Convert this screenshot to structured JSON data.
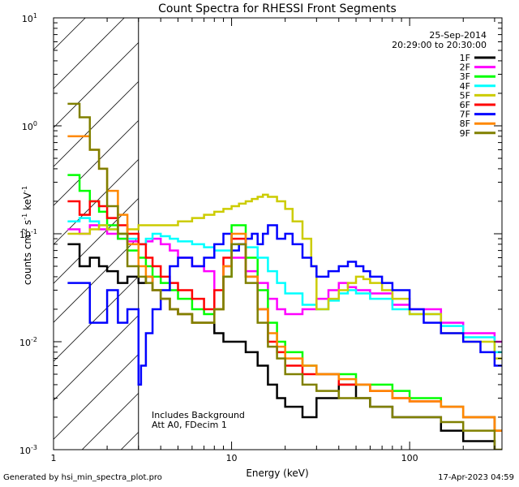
{
  "chart_data": {
    "type": "line",
    "title": "Count Spectra for RHESSI Front Segments",
    "date": "25-Sep-2014",
    "time_range": "20:29:00 to 20:30:00",
    "xlabel": "Energy (keV)",
    "ylabel": {
      "prefix": "counts cm",
      "exp1": "-2",
      "mid": " s",
      "exp2": "-1",
      "mid2": " keV",
      "exp3": "-1"
    },
    "xscale": "log",
    "yscale": "log",
    "xlim": [
      1,
      330
    ],
    "ylim": [
      0.001,
      10
    ],
    "x_ticks": [
      {
        "value": 1,
        "label": "1"
      },
      {
        "value": 10,
        "label": "10"
      },
      {
        "value": 100,
        "label": "100"
      }
    ],
    "y_ticks": [
      {
        "value": 0.001,
        "base": "10",
        "exp": "-3"
      },
      {
        "value": 0.01,
        "base": "10",
        "exp": "-2"
      },
      {
        "value": 0.1,
        "base": "10",
        "exp": "-1"
      },
      {
        "value": 1,
        "base": "10",
        "exp": "0"
      },
      {
        "value": 10,
        "base": "10",
        "exp": "1"
      }
    ],
    "hatched_below_energy": 3,
    "annotations": [
      "Includes Background",
      "Att A0, FDecim 1"
    ],
    "legend_position": "top-right",
    "series": [
      {
        "name": "1F",
        "color": "#000000",
        "x": [
          1.2,
          1.4,
          1.6,
          1.8,
          2.0,
          2.3,
          2.6,
          3.0,
          3.3,
          3.6,
          4.0,
          4.5,
          5.0,
          6.0,
          7.0,
          8.0,
          9.0,
          10,
          12,
          14,
          16,
          18,
          20,
          25,
          30,
          40,
          50,
          60,
          80,
          100,
          150,
          200,
          300
        ],
        "y": [
          0.08,
          0.05,
          0.06,
          0.05,
          0.045,
          0.035,
          0.04,
          0.035,
          0.04,
          0.03,
          0.025,
          0.02,
          0.018,
          0.015,
          0.015,
          0.012,
          0.01,
          0.01,
          0.008,
          0.006,
          0.004,
          0.003,
          0.0025,
          0.002,
          0.003,
          0.004,
          0.003,
          0.0025,
          0.002,
          0.002,
          0.0015,
          0.0012,
          0.0008
        ]
      },
      {
        "name": "2F",
        "color": "#ff00ff",
        "x": [
          1.2,
          1.4,
          1.6,
          1.8,
          2.0,
          2.3,
          2.6,
          3.0,
          3.3,
          3.6,
          4.0,
          4.5,
          5.0,
          6.0,
          7.0,
          8.0,
          9.0,
          10,
          12,
          14,
          16,
          18,
          20,
          25,
          30,
          35,
          40,
          45,
          50,
          60,
          80,
          100,
          150,
          200,
          300
        ],
        "y": [
          0.11,
          0.1,
          0.12,
          0.11,
          0.1,
          0.09,
          0.085,
          0.08,
          0.085,
          0.09,
          0.08,
          0.07,
          0.06,
          0.05,
          0.045,
          0.02,
          0.05,
          0.06,
          0.045,
          0.035,
          0.025,
          0.02,
          0.018,
          0.02,
          0.025,
          0.03,
          0.035,
          0.032,
          0.03,
          0.028,
          0.022,
          0.02,
          0.015,
          0.012,
          0.01
        ]
      },
      {
        "name": "3F",
        "color": "#00ff00",
        "x": [
          1.2,
          1.4,
          1.6,
          1.8,
          2.0,
          2.3,
          2.6,
          3.0,
          3.3,
          3.6,
          4.0,
          4.5,
          5.0,
          6.0,
          7.0,
          8.0,
          9.0,
          10,
          12,
          14,
          16,
          18,
          20,
          25,
          30,
          40,
          50,
          60,
          80,
          100,
          150,
          200,
          300
        ],
        "y": [
          0.35,
          0.25,
          0.2,
          0.16,
          0.12,
          0.09,
          0.07,
          0.06,
          0.05,
          0.04,
          0.035,
          0.03,
          0.025,
          0.02,
          0.018,
          0.02,
          0.04,
          0.12,
          0.06,
          0.03,
          0.015,
          0.01,
          0.008,
          0.006,
          0.005,
          0.005,
          0.004,
          0.004,
          0.0035,
          0.003,
          0.0025,
          0.002,
          0.0015
        ]
      },
      {
        "name": "4F",
        "color": "#00ffff",
        "x": [
          1.2,
          1.4,
          1.6,
          1.8,
          2.0,
          2.3,
          2.6,
          3.0,
          3.3,
          3.6,
          4.0,
          4.5,
          5.0,
          6.0,
          7.0,
          8.0,
          9.0,
          10,
          12,
          14,
          16,
          18,
          20,
          25,
          30,
          35,
          40,
          45,
          50,
          60,
          80,
          100,
          150,
          200,
          300
        ],
        "y": [
          0.13,
          0.14,
          0.13,
          0.12,
          0.11,
          0.1,
          0.09,
          0.08,
          0.09,
          0.1,
          0.095,
          0.09,
          0.085,
          0.08,
          0.075,
          0.07,
          0.07,
          0.08,
          0.075,
          0.06,
          0.045,
          0.035,
          0.028,
          0.022,
          0.02,
          0.024,
          0.028,
          0.03,
          0.028,
          0.025,
          0.02,
          0.018,
          0.014,
          0.011,
          0.008
        ]
      },
      {
        "name": "5F",
        "color": "#cccc00",
        "x": [
          1.2,
          1.4,
          1.6,
          1.8,
          2.0,
          2.3,
          2.6,
          3.0,
          3.5,
          4.0,
          5.0,
          6.0,
          7.0,
          8.0,
          9.0,
          10,
          11,
          12,
          13,
          14,
          15,
          16,
          18,
          20,
          22,
          25,
          28,
          30,
          35,
          40,
          45,
          50,
          55,
          60,
          70,
          80,
          100,
          150,
          200,
          300
        ],
        "y": [
          0.1,
          0.1,
          0.11,
          0.12,
          0.11,
          0.1,
          0.11,
          0.12,
          0.12,
          0.12,
          0.13,
          0.14,
          0.15,
          0.16,
          0.17,
          0.18,
          0.19,
          0.2,
          0.21,
          0.22,
          0.23,
          0.22,
          0.2,
          0.17,
          0.13,
          0.09,
          0.05,
          0.02,
          0.025,
          0.03,
          0.035,
          0.04,
          0.038,
          0.035,
          0.03,
          0.025,
          0.018,
          0.012,
          0.01,
          0.007
        ]
      },
      {
        "name": "6F",
        "color": "#ff0000",
        "x": [
          1.2,
          1.4,
          1.6,
          1.8,
          2.0,
          2.3,
          2.6,
          3.0,
          3.3,
          3.6,
          4.0,
          4.5,
          5.0,
          6.0,
          7.0,
          8.0,
          9.0,
          10,
          12,
          14,
          16,
          18,
          20,
          25,
          30,
          40,
          50,
          60,
          80,
          100,
          150,
          200,
          300
        ],
        "y": [
          0.2,
          0.15,
          0.2,
          0.18,
          0.14,
          0.12,
          0.1,
          0.08,
          0.06,
          0.05,
          0.04,
          0.035,
          0.03,
          0.025,
          0.02,
          0.03,
          0.06,
          0.09,
          0.04,
          0.02,
          0.01,
          0.008,
          0.006,
          0.005,
          0.005,
          0.004,
          0.004,
          0.0035,
          0.003,
          0.0028,
          0.0025,
          0.002,
          0.0015
        ]
      },
      {
        "name": "7F",
        "color": "#0000ff",
        "x": [
          1.2,
          1.4,
          1.6,
          1.8,
          2.0,
          2.3,
          2.6,
          3.0,
          3.1,
          3.3,
          3.6,
          4.0,
          4.5,
          5.0,
          6.0,
          7.0,
          8.0,
          9.0,
          10,
          11,
          12,
          13,
          14,
          15,
          16,
          18,
          20,
          22,
          25,
          28,
          30,
          35,
          40,
          45,
          50,
          55,
          60,
          70,
          80,
          100,
          120,
          150,
          200,
          250,
          300
        ],
        "y": [
          0.035,
          0.035,
          0.015,
          0.015,
          0.03,
          0.015,
          0.02,
          0.004,
          0.006,
          0.012,
          0.02,
          0.03,
          0.05,
          0.06,
          0.05,
          0.06,
          0.08,
          0.1,
          0.07,
          0.08,
          0.09,
          0.1,
          0.08,
          0.1,
          0.12,
          0.09,
          0.1,
          0.08,
          0.06,
          0.05,
          0.04,
          0.045,
          0.05,
          0.055,
          0.05,
          0.045,
          0.04,
          0.035,
          0.03,
          0.02,
          0.015,
          0.012,
          0.01,
          0.008,
          0.006
        ]
      },
      {
        "name": "8F",
        "color": "#ff8800",
        "x": [
          1.2,
          1.4,
          1.6,
          1.8,
          2.0,
          2.3,
          2.6,
          3.0,
          3.3,
          3.6,
          4.0,
          4.5,
          5.0,
          6.0,
          7.0,
          8.0,
          9.0,
          10,
          12,
          14,
          16,
          18,
          20,
          25,
          30,
          40,
          50,
          60,
          80,
          100,
          150,
          200,
          300
        ],
        "y": [
          0.8,
          0.8,
          0.6,
          0.4,
          0.25,
          0.15,
          0.08,
          0.05,
          0.04,
          0.03,
          0.025,
          0.02,
          0.018,
          0.015,
          0.015,
          0.02,
          0.05,
          0.1,
          0.04,
          0.02,
          0.012,
          0.009,
          0.007,
          0.006,
          0.005,
          0.0045,
          0.004,
          0.0035,
          0.003,
          0.0028,
          0.0025,
          0.002,
          0.0015
        ]
      },
      {
        "name": "9F",
        "color": "#808000",
        "x": [
          1.2,
          1.4,
          1.6,
          1.8,
          2.0,
          2.3,
          2.6,
          3.0,
          3.3,
          3.6,
          4.0,
          4.5,
          5.0,
          6.0,
          7.0,
          8.0,
          9.0,
          10,
          12,
          14,
          16,
          18,
          20,
          25,
          30,
          40,
          50,
          60,
          80,
          100,
          150,
          200,
          300
        ],
        "y": [
          1.6,
          1.2,
          0.6,
          0.4,
          0.18,
          0.1,
          0.05,
          0.04,
          0.035,
          0.03,
          0.025,
          0.02,
          0.018,
          0.015,
          0.015,
          0.02,
          0.04,
          0.08,
          0.035,
          0.015,
          0.009,
          0.007,
          0.005,
          0.004,
          0.0035,
          0.003,
          0.003,
          0.0025,
          0.002,
          0.002,
          0.0018,
          0.0015,
          0.001
        ]
      }
    ]
  },
  "footer": {
    "generated_by": "Generated by hsi_min_spectra_plot.pro",
    "timestamp": "17-Apr-2023 04:59"
  }
}
